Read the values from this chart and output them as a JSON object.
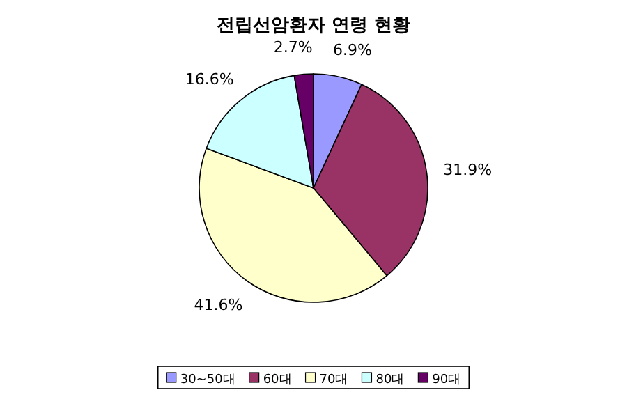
{
  "chart_data": {
    "type": "pie",
    "title": "전립선암환자 연령 현황",
    "categories": [
      "30~50대",
      "60대",
      "70대",
      "80대",
      "90대"
    ],
    "values": [
      6.9,
      31.9,
      41.6,
      16.6,
      2.7
    ],
    "colors": [
      "#9999ff",
      "#993366",
      "#ffffcc",
      "#ccffff",
      "#660066"
    ],
    "value_labels": [
      "6.9%",
      "31.9%",
      "41.6%",
      "16.6%",
      "2.7%"
    ],
    "legend": "bottom"
  }
}
